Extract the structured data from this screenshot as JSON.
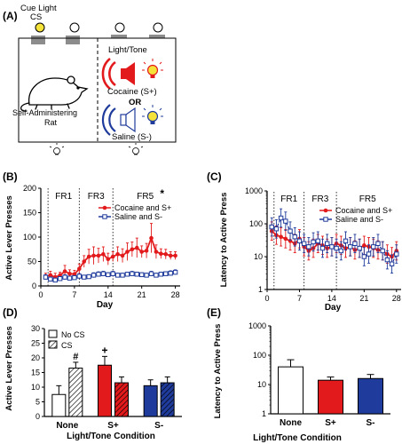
{
  "panelA": {
    "letter": "(A)",
    "cue_title_line1": "Cue Light",
    "cue_title_line2": "CS",
    "rat_label_line1": "Self-Administering",
    "rat_label_line2": "Rat",
    "lt_label": "Light/Tone",
    "cocaine_label": "Cocaine (S+)",
    "or_label": "OR",
    "saline_label": "Saline (S-)",
    "colors": {
      "cue_on": "#f5e33a",
      "cocaine": "#e31a1c",
      "saline": "#1f3b9b",
      "lever": "#8c8c8c"
    }
  },
  "chart_data": [
    {
      "panel": "(B)",
      "type": "line",
      "xlabel": "Day",
      "ylabel": "Active Lever Presses",
      "xlim": [
        0,
        29
      ],
      "ylim": [
        0,
        200
      ],
      "xticks": [
        "0",
        "7",
        "14",
        "21",
        "28"
      ],
      "yticks": [
        "0",
        "50",
        "100",
        "150",
        "200"
      ],
      "phases": [
        "FR1",
        "FR3",
        "FR5"
      ],
      "phase_boundaries": [
        1.5,
        8,
        15
      ],
      "asterisk": "*",
      "legend_position": "top-right",
      "series": [
        {
          "name": "Cocaine and S+",
          "color": "#e31a1c",
          "x": [
            1,
            2,
            3,
            4,
            5,
            6,
            7,
            8,
            9,
            10,
            11,
            12,
            13,
            14,
            15,
            16,
            17,
            18,
            19,
            20,
            21,
            22,
            23,
            24,
            25,
            26,
            27,
            28
          ],
          "values": [
            20,
            22,
            18,
            22,
            30,
            25,
            24,
            35,
            50,
            60,
            62,
            62,
            65,
            55,
            60,
            65,
            62,
            70,
            75,
            78,
            70,
            72,
            98,
            70,
            66,
            65,
            62,
            62
          ],
          "err": [
            6,
            8,
            8,
            6,
            12,
            8,
            8,
            10,
            12,
            15,
            18,
            15,
            15,
            12,
            10,
            15,
            14,
            18,
            15,
            20,
            12,
            15,
            30,
            14,
            10,
            10,
            8,
            8
          ]
        },
        {
          "name": "Saline and S-",
          "color": "#1f3b9b",
          "x": [
            1,
            2,
            3,
            4,
            5,
            6,
            7,
            8,
            9,
            10,
            11,
            12,
            13,
            14,
            15,
            16,
            17,
            18,
            19,
            20,
            21,
            22,
            23,
            24,
            25,
            26,
            27,
            28
          ],
          "values": [
            18,
            14,
            12,
            15,
            18,
            16,
            17,
            20,
            18,
            19,
            22,
            24,
            25,
            23,
            25,
            22,
            22,
            24,
            25,
            24,
            23,
            22,
            25,
            22,
            24,
            25,
            26,
            28
          ],
          "err": [
            5,
            4,
            4,
            4,
            5,
            4,
            4,
            5,
            4,
            4,
            5,
            5,
            5,
            4,
            5,
            4,
            4,
            4,
            5,
            4,
            4,
            4,
            5,
            4,
            4,
            4,
            5,
            5
          ]
        }
      ]
    },
    {
      "panel": "(C)",
      "type": "line",
      "xlabel": "Day",
      "ylabel": "Latency to Active Press",
      "xlim": [
        0,
        29
      ],
      "ylim": [
        1,
        1000
      ],
      "yscale": "log",
      "xticks": [
        "0",
        "7",
        "14",
        "21",
        "28"
      ],
      "yticks": [
        "1",
        "10",
        "100",
        "1000"
      ],
      "phases": [
        "FR1",
        "FR3",
        "FR5"
      ],
      "phase_boundaries": [
        1.5,
        8,
        15
      ],
      "legend_position": "top-right",
      "series": [
        {
          "name": "Cocaine and S+",
          "color": "#e31a1c",
          "x": [
            1,
            2,
            3,
            4,
            5,
            6,
            7,
            8,
            9,
            10,
            11,
            12,
            13,
            14,
            15,
            16,
            17,
            18,
            19,
            20,
            21,
            22,
            23,
            24,
            25,
            26,
            27,
            28
          ],
          "values": [
            60,
            45,
            40,
            35,
            30,
            25,
            35,
            20,
            15,
            18,
            25,
            22,
            18,
            20,
            25,
            22,
            18,
            20,
            16,
            18,
            22,
            20,
            18,
            16,
            15,
            12,
            10,
            15
          ]
        },
        {
          "name": "Saline and S-",
          "color": "#1f3b9b",
          "x": [
            1,
            2,
            3,
            4,
            5,
            6,
            7,
            8,
            9,
            10,
            11,
            12,
            13,
            14,
            15,
            16,
            17,
            18,
            19,
            20,
            21,
            22,
            23,
            24,
            25,
            26,
            27,
            28
          ],
          "values": [
            80,
            70,
            150,
            120,
            60,
            40,
            30,
            25,
            20,
            28,
            30,
            18,
            25,
            20,
            18,
            15,
            30,
            20,
            25,
            18,
            10,
            12,
            20,
            25,
            15,
            8,
            6,
            12
          ]
        }
      ]
    },
    {
      "panel": "(D)",
      "type": "bar",
      "xlabel": "Light/Tone Condition",
      "ylabel": "Active Lever Presses",
      "ylim": [
        0,
        30
      ],
      "yticks": [
        "0",
        "5",
        "10",
        "15",
        "20",
        "25",
        "30"
      ],
      "categories": [
        "None",
        "S+",
        "S-"
      ],
      "legend": [
        "No CS",
        "CS"
      ],
      "legend_position": "top-left",
      "colors": [
        "#ffffff",
        "#e31a1c",
        "#1f3b9b"
      ],
      "series": [
        {
          "name": "No CS",
          "values": [
            7.5,
            17.5,
            10.5
          ],
          "err": [
            3,
            3,
            2
          ]
        },
        {
          "name": "CS",
          "values": [
            16.5,
            11.5,
            11.5
          ],
          "err": [
            2,
            2,
            2
          ]
        }
      ],
      "annotations": [
        "#",
        "+"
      ]
    },
    {
      "panel": "(E)",
      "type": "bar",
      "xlabel": "Light/Tone Condition",
      "ylabel": "Latency to Active Press",
      "ylim": [
        1,
        1000
      ],
      "yscale": "log",
      "yticks": [
        "1",
        "10",
        "100",
        "1000"
      ],
      "categories": [
        "None",
        "S+",
        "S-"
      ],
      "colors": [
        "#ffffff",
        "#e31a1c",
        "#1f3b9b"
      ],
      "values": [
        40,
        14,
        16
      ],
      "err_upper": [
        70,
        18,
        22
      ]
    }
  ]
}
